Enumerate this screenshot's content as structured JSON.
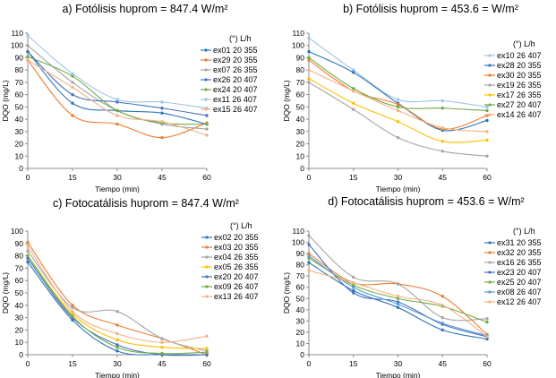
{
  "chart_data": [
    {
      "type": "line",
      "title": "a) Fotólisis hυprom = 847.4 W/m²",
      "xlabel": "Tiempo (min)",
      "ylabel": "DQO (mg/L)",
      "xlim": [
        0,
        60
      ],
      "ylim": [
        0,
        110
      ],
      "xticks": [
        0,
        15,
        30,
        45,
        60
      ],
      "yticks": [
        0,
        10,
        20,
        30,
        40,
        50,
        60,
        70,
        80,
        90,
        100,
        110
      ],
      "legend_header": "(°)  L/h",
      "x": [
        0,
        15,
        30,
        45,
        60
      ],
      "series": [
        {
          "name": "ex01 20  355",
          "color": "#2e75b6",
          "values": [
            95,
            53,
            47,
            45,
            36
          ]
        },
        {
          "name": "ex29 20  355",
          "color": "#ed7d31",
          "values": [
            88,
            43,
            36,
            25,
            37
          ]
        },
        {
          "name": "ex07 26  355",
          "color": "#a5a5a5",
          "values": [
            100,
            70,
            47,
            36,
            32
          ]
        },
        {
          "name": "ex26 20  407",
          "color": "#4472c4",
          "values": [
            95,
            60,
            54,
            49,
            43
          ]
        },
        {
          "name": "ex24 20  407",
          "color": "#70ad47",
          "values": [
            91,
            75,
            47,
            37,
            36
          ]
        },
        {
          "name": "ex11 26  407",
          "color": "#9dc3e6",
          "values": [
            108,
            77,
            56,
            54,
            49
          ]
        },
        {
          "name": "ex15 26  407",
          "color": "#f4b183",
          "values": [
            88,
            66,
            43,
            38,
            27
          ]
        }
      ]
    },
    {
      "type": "line",
      "title": "b) Fotólisis hυprom = 453.6 = W/m²",
      "xlabel": "Tiempo (min)",
      "ylabel": "DQO (mg/L)",
      "xlim": [
        0,
        60
      ],
      "ylim": [
        0,
        110
      ],
      "xticks": [
        0,
        15,
        30,
        45,
        60
      ],
      "yticks": [
        0,
        10,
        20,
        30,
        40,
        50,
        60,
        70,
        80,
        90,
        100,
        110
      ],
      "legend_header": "(°)  L/h",
      "x": [
        0,
        15,
        30,
        45,
        60
      ],
      "series": [
        {
          "name": "ex10 26  407",
          "color": "#9dc3e6",
          "values": [
            106,
            80,
            56,
            55,
            50
          ]
        },
        {
          "name": "ex28 20  355",
          "color": "#2e75b6",
          "values": [
            95,
            78,
            53,
            31,
            39
          ]
        },
        {
          "name": "ex30 20  355",
          "color": "#ed7d31",
          "values": [
            88,
            63,
            52,
            32,
            43
          ]
        },
        {
          "name": "ex19 26  355",
          "color": "#a5a5a5",
          "values": [
            70,
            48,
            25,
            14,
            10
          ]
        },
        {
          "name": "ex17 26  355",
          "color": "#ffc000",
          "values": [
            73,
            53,
            38,
            22,
            23
          ]
        },
        {
          "name": "ex27 20  407",
          "color": "#70ad47",
          "values": [
            90,
            65,
            50,
            49,
            47
          ]
        },
        {
          "name": "ex14 26  407",
          "color": "#f4b183",
          "values": [
            80,
            63,
            47,
            33,
            30
          ]
        }
      ]
    },
    {
      "type": "line",
      "title": "c) Fotocatálisis hυprom = 847.4 W/m²",
      "xlabel": "Tiempo (min)",
      "ylabel": "DQO (mg/L)",
      "xlim": [
        0,
        60
      ],
      "ylim": [
        0,
        100
      ],
      "xticks": [
        0,
        15,
        30,
        45,
        60
      ],
      "yticks": [
        0,
        10,
        20,
        30,
        40,
        50,
        60,
        70,
        80,
        90,
        100
      ],
      "legend_header": "(°)  L/h",
      "x": [
        0,
        15,
        30,
        45,
        60
      ],
      "series": [
        {
          "name": "ex02 20  355",
          "color": "#2e75b6",
          "values": [
            75,
            28,
            3,
            0,
            0
          ]
        },
        {
          "name": "ex03 20  355",
          "color": "#ed7d31",
          "values": [
            91,
            40,
            24,
            13,
            0
          ]
        },
        {
          "name": "ex04 26  355",
          "color": "#a5a5a5",
          "values": [
            84,
            38,
            35,
            13,
            3
          ]
        },
        {
          "name": "ex05 26  355",
          "color": "#ffc000",
          "values": [
            80,
            33,
            12,
            6,
            5
          ]
        },
        {
          "name": "ex20 20  407",
          "color": "#4472c4",
          "values": [
            78,
            30,
            8,
            0,
            0
          ]
        },
        {
          "name": "ex09 26  407",
          "color": "#70ad47",
          "values": [
            80,
            31,
            6,
            1,
            2
          ]
        },
        {
          "name": "ex13 26  407",
          "color": "#f4b183",
          "values": [
            88,
            35,
            17,
            10,
            15
          ]
        }
      ]
    },
    {
      "type": "line",
      "title": "d) Fotocatálisis hυprom = 453.6 = W/m²",
      "xlabel": "Tiempo (min)",
      "ylabel": "DQO (mg/L)",
      "xlim": [
        0,
        60
      ],
      "ylim": [
        0,
        110
      ],
      "xticks": [
        0,
        15,
        30,
        45,
        60
      ],
      "yticks": [
        0,
        10,
        20,
        30,
        40,
        50,
        60,
        70,
        80,
        90,
        100,
        110
      ],
      "legend_header": "(°)  L/h",
      "x": [
        0,
        15,
        30,
        45,
        60
      ],
      "series": [
        {
          "name": "ex31 20  355",
          "color": "#2e75b6",
          "values": [
            82,
            57,
            42,
            22,
            14
          ]
        },
        {
          "name": "ex32 20  355",
          "color": "#ed7d31",
          "values": [
            90,
            64,
            63,
            52,
            18
          ]
        },
        {
          "name": "ex16 26  355",
          "color": "#a5a5a5",
          "values": [
            106,
            69,
            63,
            33,
            32
          ]
        },
        {
          "name": "ex23 20  407",
          "color": "#4472c4",
          "values": [
            98,
            55,
            47,
            27,
            16
          ]
        },
        {
          "name": "ex25 20  407",
          "color": "#70ad47",
          "values": [
            86,
            62,
            50,
            43,
            29
          ]
        },
        {
          "name": "ex08 26  407",
          "color": "#5b9bd5",
          "values": [
            88,
            60,
            45,
            28,
            17
          ]
        },
        {
          "name": "ex12 26  407",
          "color": "#f4b183",
          "values": [
            75,
            64,
            52,
            44,
            16
          ]
        }
      ]
    }
  ]
}
